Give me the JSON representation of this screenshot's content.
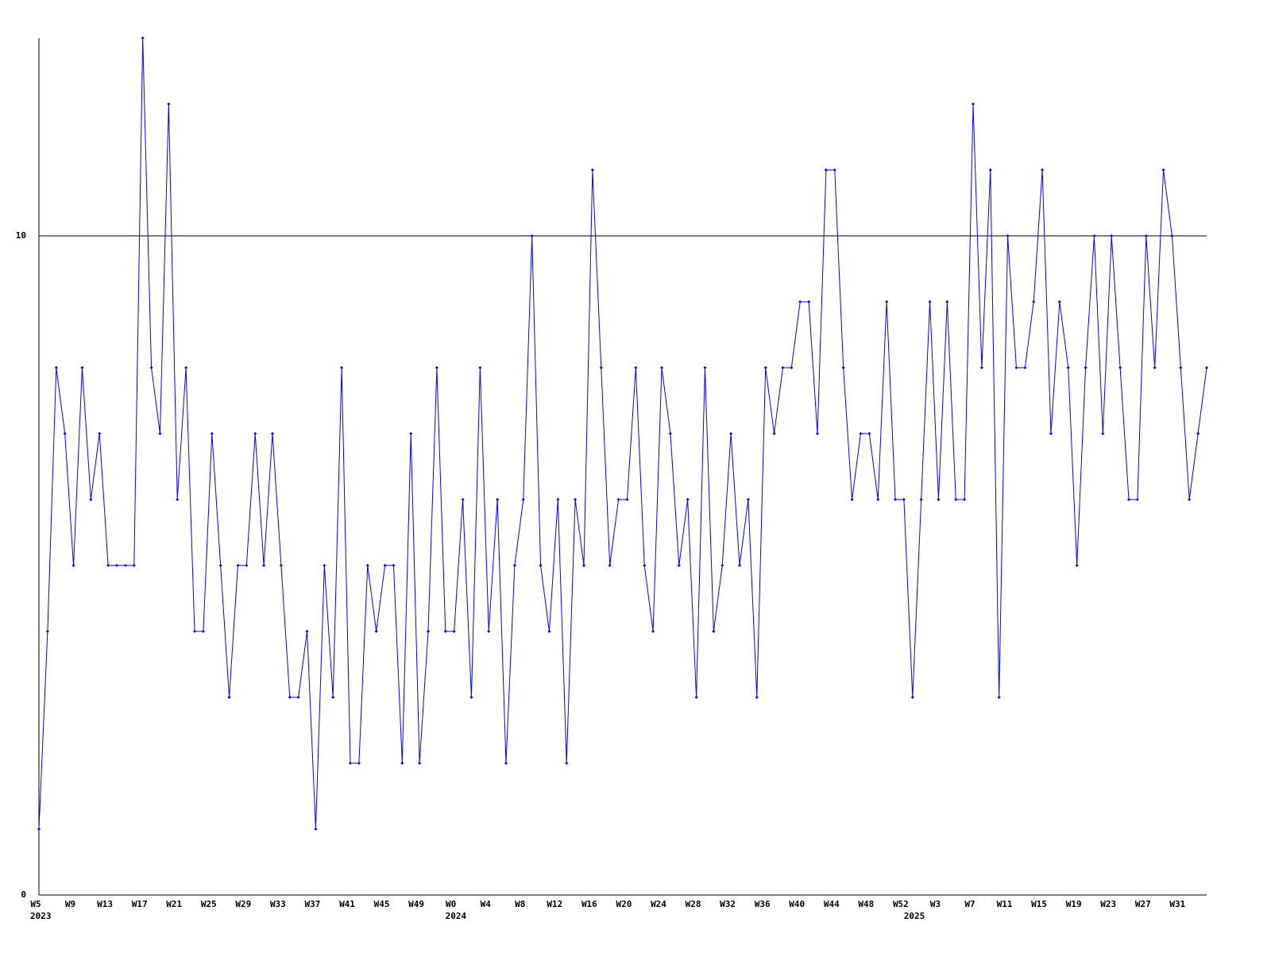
{
  "chart_data": {
    "type": "line",
    "categories": [
      "W5",
      null,
      null,
      null,
      "W9",
      null,
      null,
      null,
      "W13",
      null,
      null,
      null,
      "W17",
      null,
      null,
      null,
      "W21",
      null,
      null,
      null,
      "W25",
      null,
      null,
      null,
      "W29",
      null,
      null,
      null,
      "W33",
      null,
      null,
      null,
      "W37",
      null,
      null,
      null,
      "W41",
      null,
      null,
      null,
      "W45",
      null,
      null,
      null,
      "W49",
      null,
      null,
      null,
      "W0",
      null,
      null,
      null,
      "W4",
      null,
      null,
      null,
      "W8",
      null,
      null,
      null,
      "W12",
      null,
      null,
      null,
      "W16",
      null,
      null,
      null,
      "W20",
      null,
      null,
      null,
      "W24",
      null,
      null,
      null,
      "W28",
      null,
      null,
      null,
      "W32",
      null,
      null,
      null,
      "W36",
      null,
      null,
      null,
      "W40",
      null,
      null,
      null,
      "W44",
      null,
      null,
      null,
      "W48",
      null,
      null,
      null,
      "W52",
      null,
      null,
      null,
      "W3",
      null,
      null,
      null,
      "W7",
      null,
      null,
      null,
      "W11",
      null,
      null,
      null,
      "W15",
      null,
      null,
      null,
      "W19",
      null,
      null,
      null,
      "W23",
      null,
      null,
      null,
      "W27",
      null,
      null,
      null,
      "W31",
      null,
      null,
      null
    ],
    "year_labels": [
      "2023",
      null,
      null,
      null,
      null,
      null,
      null,
      null,
      null,
      null,
      null,
      null,
      null,
      null,
      null,
      null,
      null,
      null,
      null,
      null,
      null,
      null,
      null,
      null,
      null,
      null,
      null,
      null,
      null,
      null,
      null,
      null,
      null,
      null,
      null,
      null,
      null,
      null,
      null,
      null,
      null,
      null,
      null,
      null,
      null,
      null,
      null,
      null,
      "2024",
      null,
      null,
      null,
      null,
      null,
      null,
      null,
      null,
      null,
      null,
      null,
      null,
      null,
      null,
      null,
      null,
      null,
      null,
      null,
      null,
      null,
      null,
      null,
      null,
      null,
      null,
      null,
      null,
      null,
      null,
      null,
      null,
      null,
      null,
      null,
      null,
      null,
      null,
      null,
      null,
      null,
      null,
      null,
      null,
      null,
      null,
      null,
      null,
      null,
      null,
      null,
      null,
      "2025",
      null,
      null,
      null,
      null,
      null,
      null,
      null,
      null,
      null,
      null,
      null,
      null,
      null,
      null,
      null,
      null,
      null,
      null,
      null,
      null,
      null,
      null,
      null,
      null,
      null,
      null,
      null,
      null,
      null,
      null,
      null,
      null,
      null,
      null
    ],
    "series": [
      {
        "color": "#0000ff",
        "values": [
          1,
          4,
          8,
          7,
          5,
          8,
          6,
          7,
          5,
          5,
          5,
          5,
          13,
          8,
          7,
          12,
          6,
          8,
          4,
          4,
          7,
          5,
          3,
          5,
          5,
          7,
          5,
          7,
          5,
          3,
          3,
          4,
          1,
          5,
          3,
          8,
          2,
          2,
          5,
          4,
          5,
          5,
          2,
          7,
          2,
          4,
          8,
          4,
          4,
          6,
          3,
          8,
          4,
          6,
          2,
          5,
          6,
          10,
          5,
          4,
          6,
          2,
          6,
          5,
          11,
          8,
          5,
          6,
          6,
          8,
          5,
          4,
          8,
          7,
          5,
          6,
          3,
          8,
          4,
          5,
          7,
          5,
          6,
          3,
          8,
          7,
          8,
          8,
          9,
          9,
          7,
          11,
          11,
          8,
          6,
          7,
          7,
          6,
          9,
          6,
          6,
          3,
          6,
          9,
          6,
          9,
          6,
          6,
          12,
          8,
          11,
          3,
          10,
          8,
          8,
          9,
          11,
          7,
          9,
          8,
          5,
          8,
          10,
          7,
          10,
          8,
          6,
          6,
          10,
          8,
          11,
          10,
          8,
          6,
          7,
          8
        ]
      }
    ],
    "ylim": [
      0,
      13
    ],
    "yticks": [
      0,
      10
    ],
    "grid": true
  }
}
